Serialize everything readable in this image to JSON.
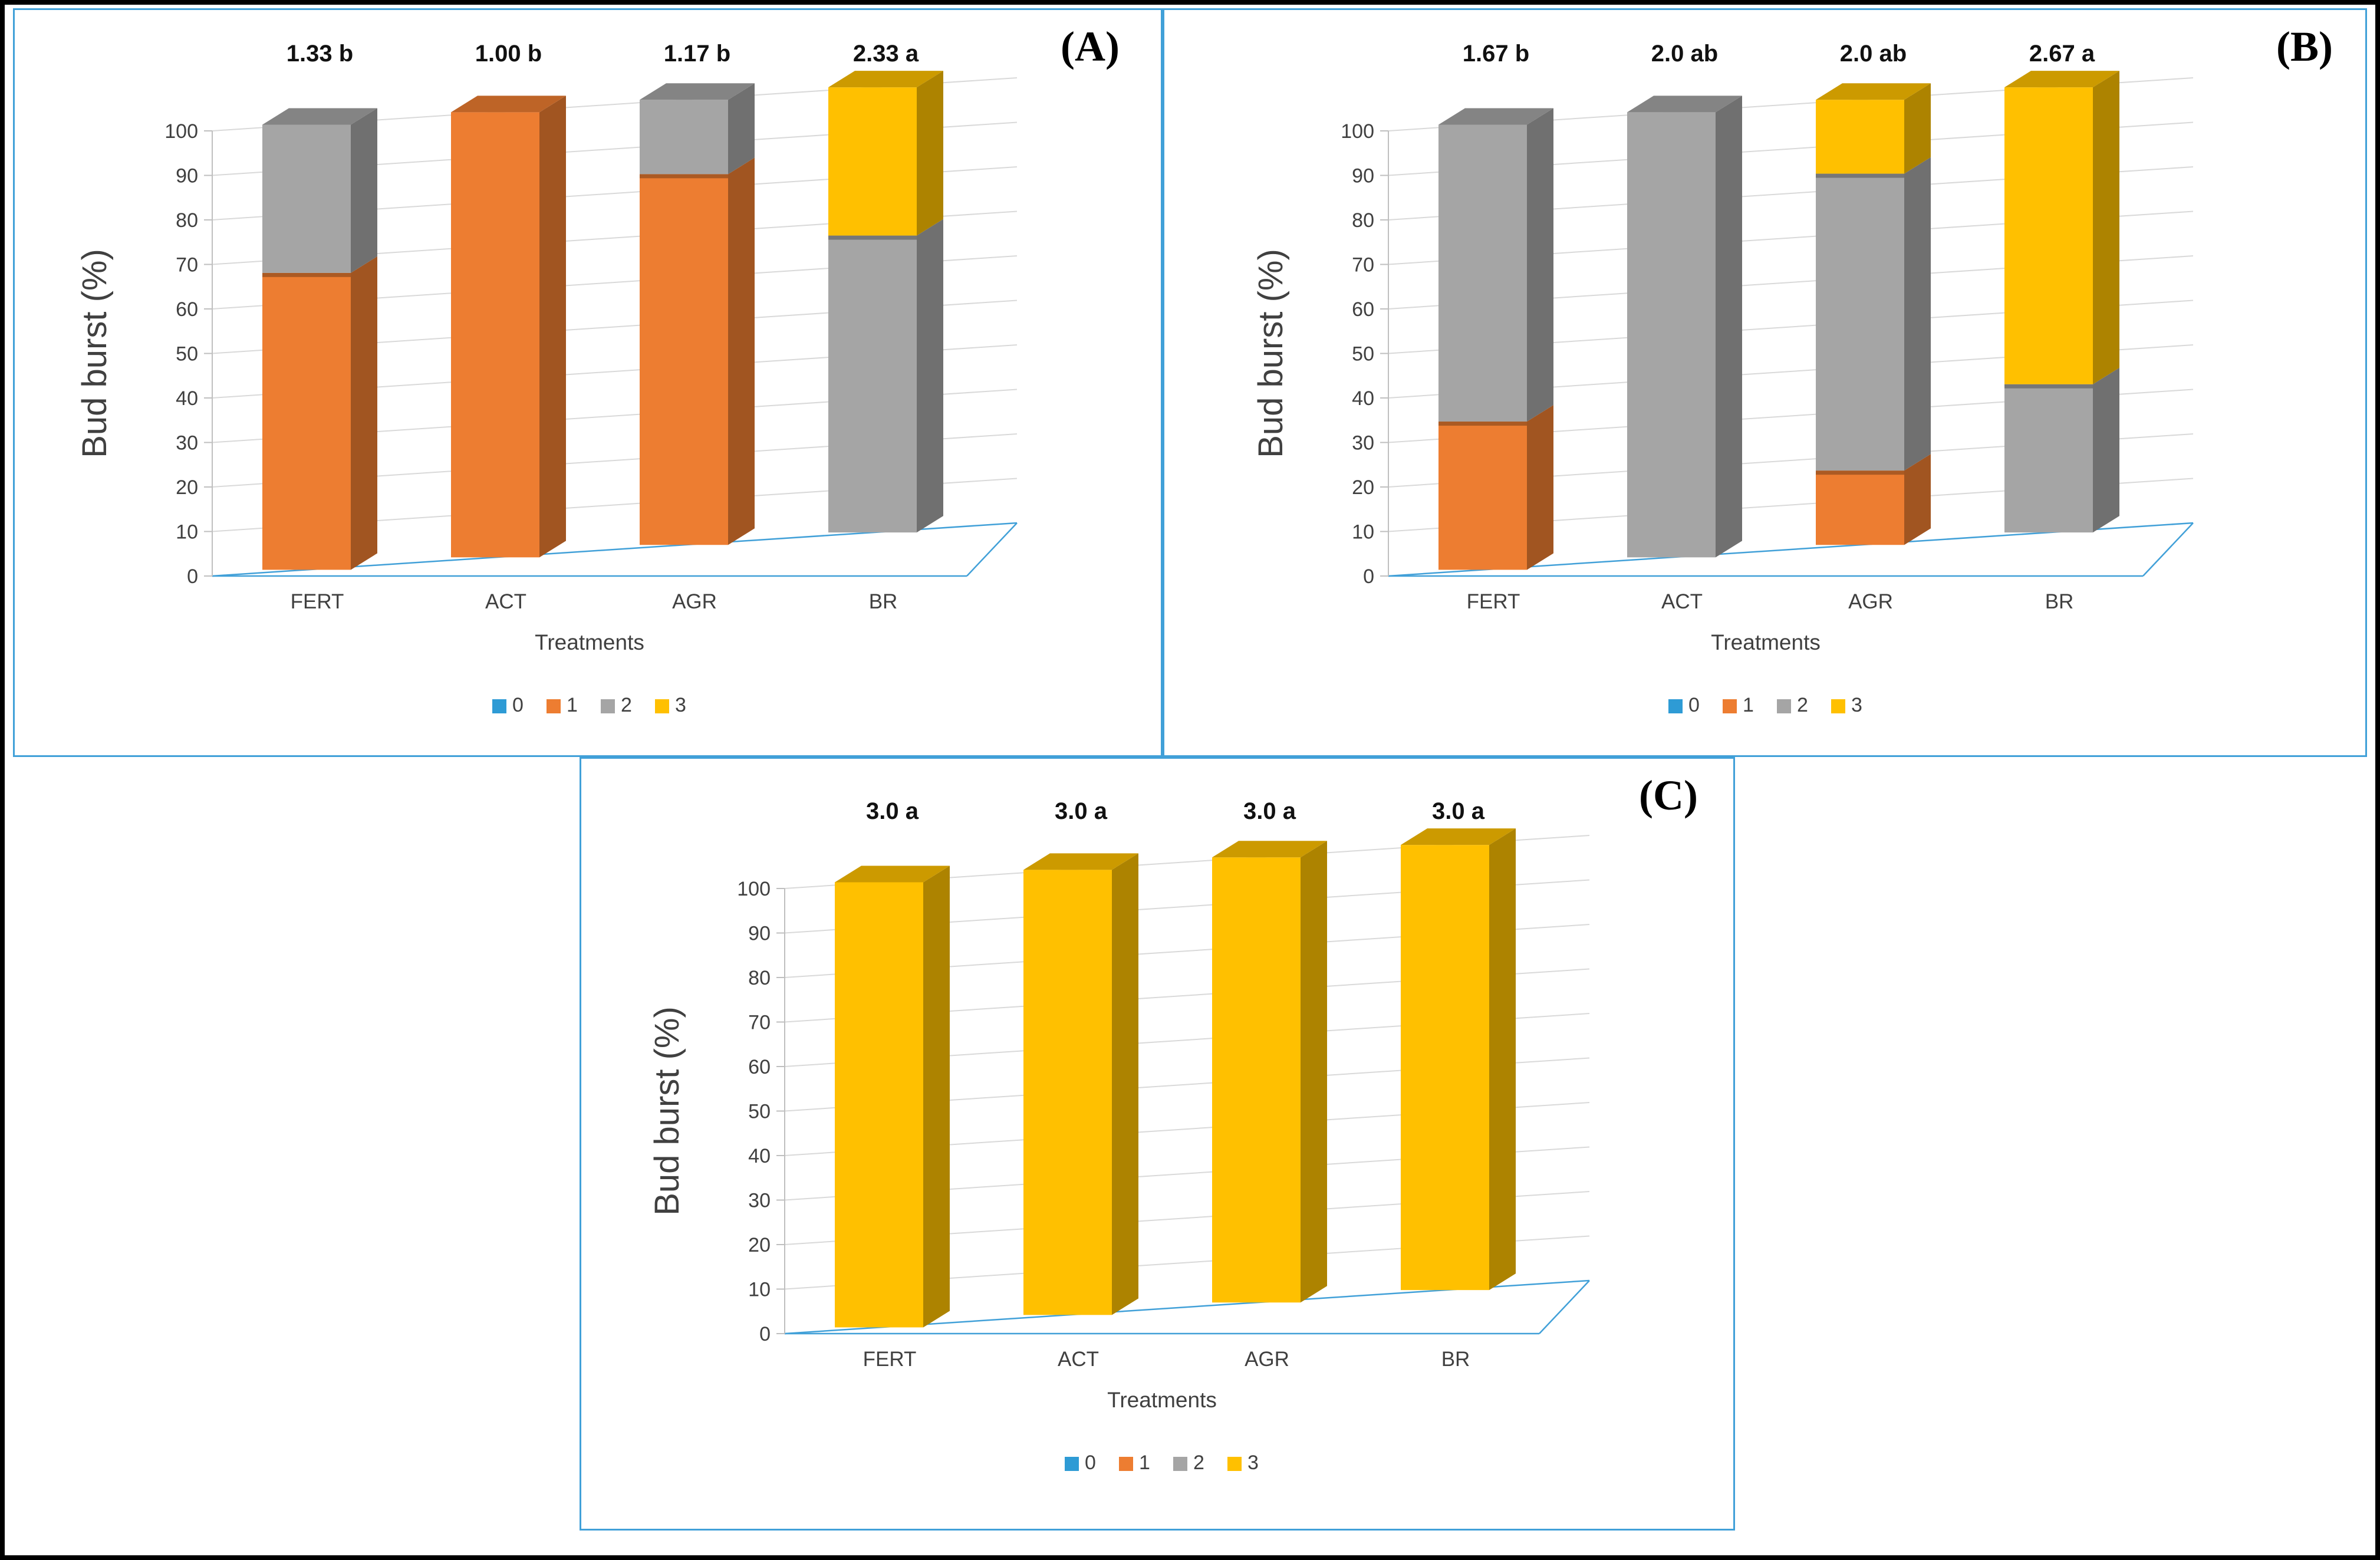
{
  "style": {
    "panel_border": "#41A0D8",
    "floor_line": "#41A0D8",
    "gridline": "#D9D9D9",
    "axis_line": "#BFBFBF",
    "tick_text_color": "#404040",
    "bar_label_color": "#111111"
  },
  "chart_data": [
    {
      "panel_label": "(A)",
      "type": "bar",
      "stacked": true,
      "view": "3d",
      "title": "",
      "ylabel": "Bud burst (%)",
      "xlabel": "Treatments",
      "ylim": [
        0,
        100
      ],
      "ytick_step": 10,
      "grid": true,
      "legend_position": "bottom",
      "categories": [
        "FERT",
        "ACT",
        "AGR",
        "BR"
      ],
      "series": [
        {
          "name": "0",
          "color": "#2E9BD5",
          "values": [
            0,
            0,
            0,
            0
          ]
        },
        {
          "name": "1",
          "color": "#ED7D31",
          "values": [
            66.7,
            100,
            83.3,
            0
          ]
        },
        {
          "name": "2",
          "color": "#A5A5A5",
          "values": [
            33.3,
            0,
            16.7,
            66.7
          ]
        },
        {
          "name": "3",
          "color": "#FFC000",
          "values": [
            0,
            0,
            0,
            33.3
          ]
        }
      ],
      "bar_labels": [
        "1.33 b",
        "1.00 b",
        "1.17 b",
        "2.33 a"
      ]
    },
    {
      "panel_label": "(B)",
      "type": "bar",
      "stacked": true,
      "view": "3d",
      "title": "",
      "ylabel": "Bud burst (%)",
      "xlabel": "Treatments",
      "ylim": [
        0,
        100
      ],
      "ytick_step": 10,
      "grid": true,
      "legend_position": "bottom",
      "categories": [
        "FERT",
        "ACT",
        "AGR",
        "BR"
      ],
      "series": [
        {
          "name": "0",
          "color": "#2E9BD5",
          "values": [
            0,
            0,
            0,
            0
          ]
        },
        {
          "name": "1",
          "color": "#ED7D31",
          "values": [
            33.3,
            0,
            16.7,
            0
          ]
        },
        {
          "name": "2",
          "color": "#A5A5A5",
          "values": [
            66.7,
            100,
            66.7,
            33.3
          ]
        },
        {
          "name": "3",
          "color": "#FFC000",
          "values": [
            0,
            0,
            16.6,
            66.7
          ]
        }
      ],
      "bar_labels": [
        "1.67 b",
        "2.0 ab",
        "2.0 ab",
        "2.67 a"
      ]
    },
    {
      "panel_label": "(C)",
      "type": "bar",
      "stacked": true,
      "view": "3d",
      "title": "",
      "ylabel": "Bud burst (%)",
      "xlabel": "Treatments",
      "ylim": [
        0,
        100
      ],
      "ytick_step": 10,
      "grid": true,
      "legend_position": "bottom",
      "categories": [
        "FERT",
        "ACT",
        "AGR",
        "BR"
      ],
      "series": [
        {
          "name": "0",
          "color": "#2E9BD5",
          "values": [
            0,
            0,
            0,
            0
          ]
        },
        {
          "name": "1",
          "color": "#ED7D31",
          "values": [
            0,
            0,
            0,
            0
          ]
        },
        {
          "name": "2",
          "color": "#A5A5A5",
          "values": [
            0,
            0,
            0,
            0
          ]
        },
        {
          "name": "3",
          "color": "#FFC000",
          "values": [
            100,
            100,
            100,
            100
          ]
        }
      ],
      "bar_labels": [
        "3.0 a",
        "3.0 a",
        "3.0 a",
        "3.0 a"
      ]
    }
  ]
}
